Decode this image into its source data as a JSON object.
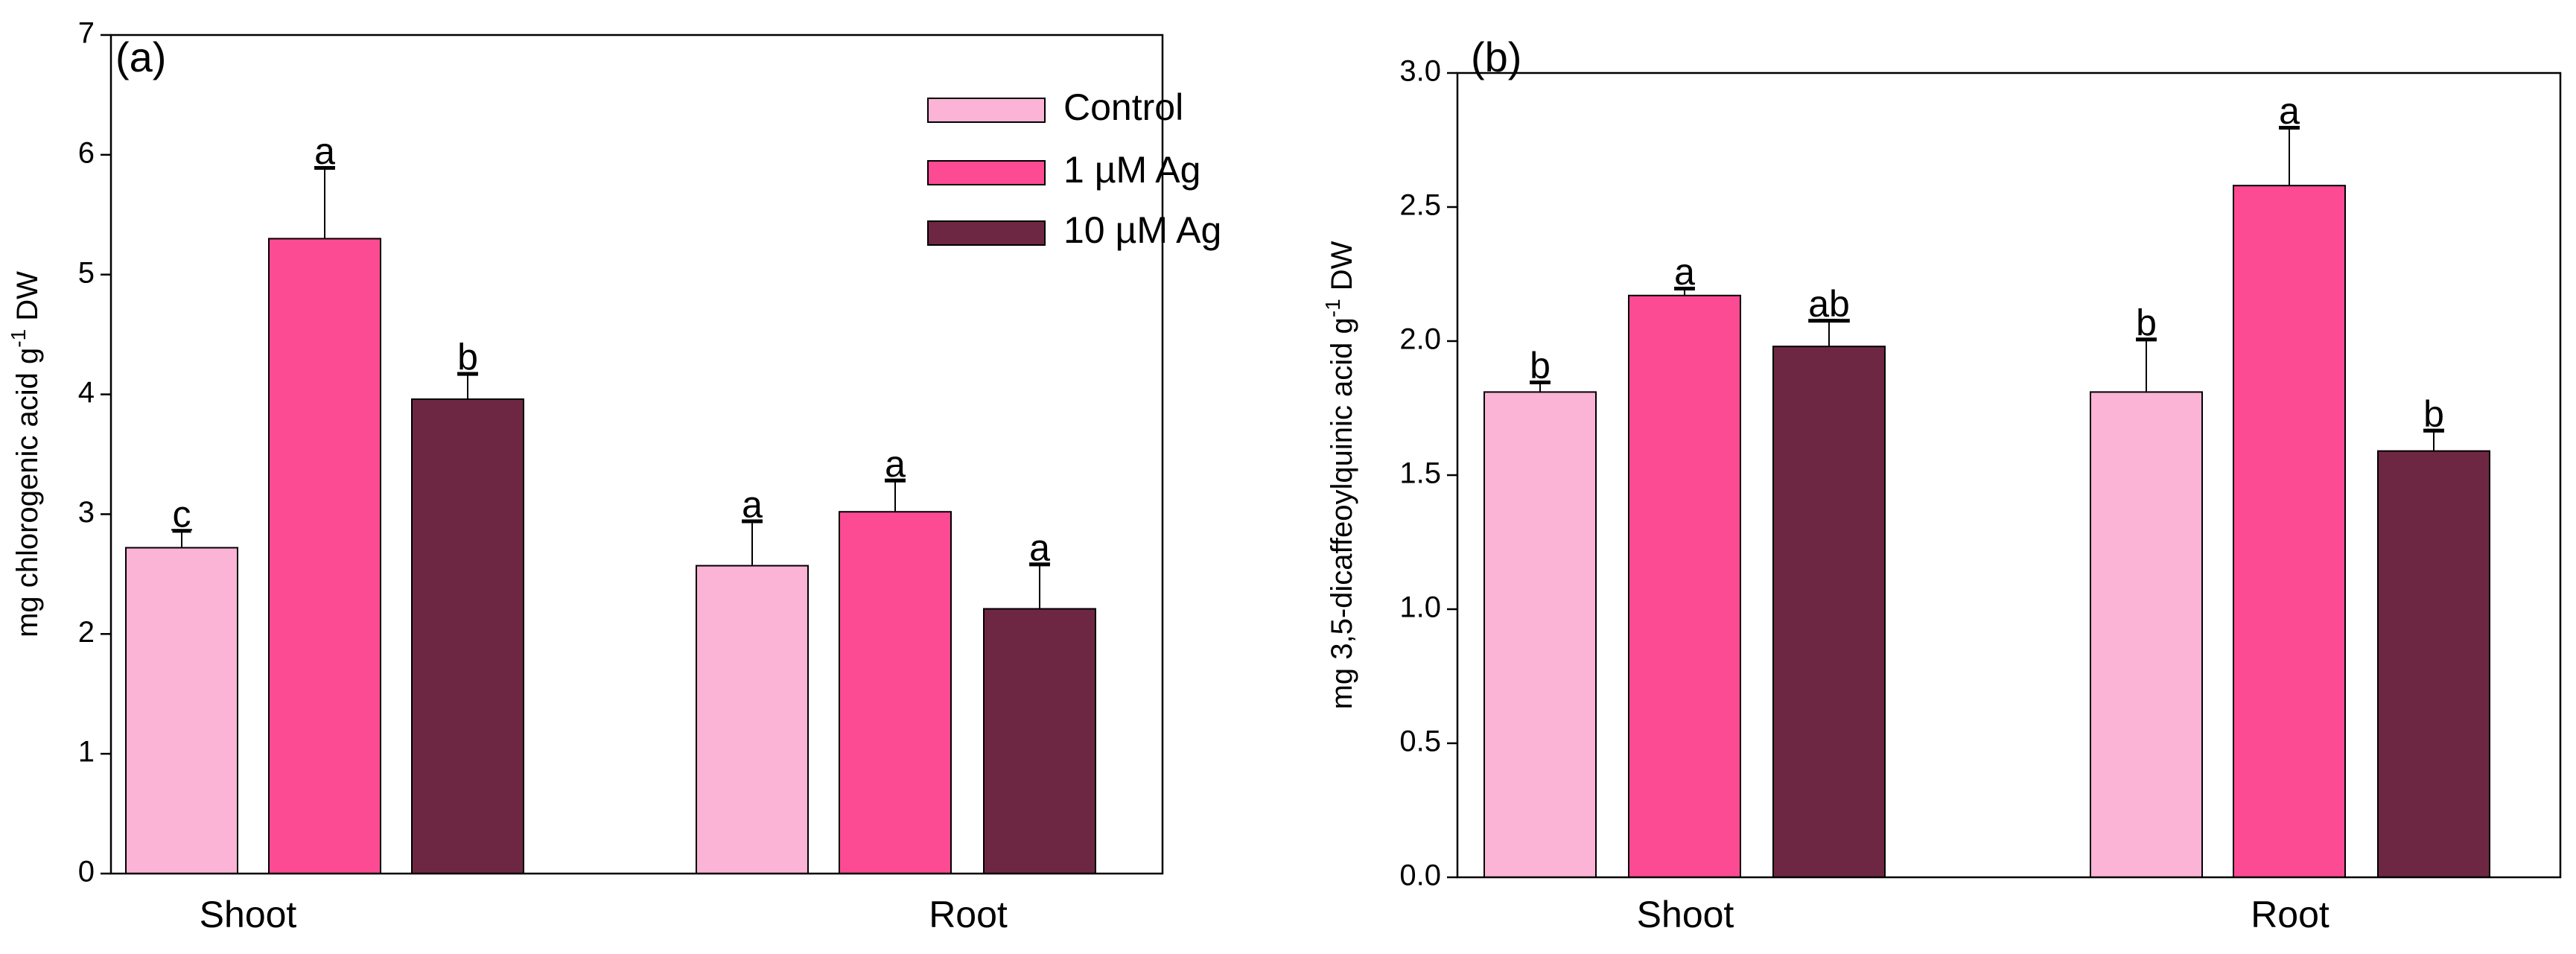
{
  "legend": {
    "items": [
      {
        "label": "Control",
        "color": "#fbb3d6"
      },
      {
        "label": "1 µM Ag",
        "color": "#fc4a93"
      },
      {
        "label": "10 µM Ag",
        "color": "#6e2743"
      }
    ]
  },
  "chart_data": [
    {
      "type": "bar",
      "panel_label": "(a)",
      "ylabel_main": "mg chlorogenic acid g",
      "ylabel_sup": "-1",
      "ylabel_tail": " DW",
      "ylim": [
        0,
        7
      ],
      "yticks": [
        "0",
        "1",
        "2",
        "3",
        "4",
        "5",
        "6",
        "7"
      ],
      "categories": [
        "Shoot",
        "Root"
      ],
      "series": [
        {
          "name": "Control",
          "values": [
            2.72,
            2.57
          ],
          "errors": [
            0.15,
            0.38
          ],
          "letters": [
            "c",
            "a"
          ]
        },
        {
          "name": "1 µM Ag",
          "values": [
            5.3,
            3.02
          ],
          "errors": [
            0.6,
            0.27
          ],
          "letters": [
            "a",
            "a"
          ]
        },
        {
          "name": "10 µM Ag",
          "values": [
            3.96,
            2.21
          ],
          "errors": [
            0.22,
            0.38
          ],
          "letters": [
            "b",
            "a"
          ]
        }
      ]
    },
    {
      "type": "bar",
      "panel_label": "(b)",
      "ylabel_main": "mg 3,5-dicaffeoylquinic acid g",
      "ylabel_sup": "-1",
      "ylabel_tail": " DW",
      "ylim": [
        0,
        3
      ],
      "yticks": [
        "0.0",
        "0.5",
        "1.0",
        "1.5",
        "2.0",
        "2.5",
        "3.0"
      ],
      "categories": [
        "Shoot",
        "Root"
      ],
      "series": [
        {
          "name": "Control",
          "values": [
            1.81,
            1.81
          ],
          "errors": [
            0.04,
            0.2
          ],
          "letters": [
            "b",
            "b"
          ]
        },
        {
          "name": "1 µM Ag",
          "values": [
            2.17,
            2.58
          ],
          "errors": [
            0.03,
            0.22
          ],
          "letters": [
            "a",
            "a"
          ]
        },
        {
          "name": "10 µM Ag",
          "values": [
            1.98,
            1.59
          ],
          "errors": [
            0.1,
            0.08
          ],
          "letters": [
            "ab",
            "b"
          ]
        }
      ]
    }
  ]
}
